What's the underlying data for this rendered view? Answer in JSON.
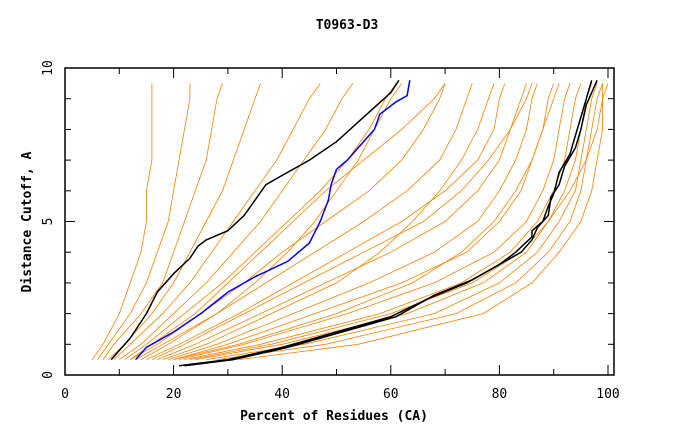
{
  "chart_data": {
    "type": "line",
    "title": "T0963-D3",
    "xlabel": "Percent of Residues (CA)",
    "ylabel": "Distance Cutoff, A",
    "xlim": [
      0,
      100
    ],
    "ylim": [
      0,
      10
    ],
    "xticks": [
      "0",
      "20",
      "40",
      "60",
      "80",
      "100"
    ],
    "yticks": [
      "0",
      "5",
      "10"
    ],
    "grid": false,
    "colors": {
      "models": "#ff8000",
      "highlight_black": "#000000",
      "highlight_blue": "#0000ff"
    },
    "y_levels": [
      0.5,
      1,
      2,
      3,
      4,
      5,
      6,
      7,
      8,
      9,
      9.5
    ],
    "model_curves_x": [
      [
        5,
        7,
        10,
        12,
        14,
        15,
        15,
        16,
        16,
        16,
        16
      ],
      [
        6,
        8,
        12,
        15,
        17,
        19,
        20,
        21,
        22,
        23,
        23
      ],
      [
        7,
        9,
        14,
        18,
        20,
        22,
        24,
        26,
        27,
        28,
        29
      ],
      [
        8,
        11,
        16,
        20,
        23,
        26,
        29,
        31,
        33,
        35,
        36
      ],
      [
        9,
        12,
        18,
        23,
        27,
        31,
        35,
        39,
        42,
        45,
        47
      ],
      [
        10,
        14,
        20,
        26,
        31,
        36,
        40,
        44,
        48,
        51,
        53
      ],
      [
        11,
        15,
        22,
        29,
        35,
        41,
        47,
        52,
        56,
        59,
        61
      ],
      [
        12,
        17,
        25,
        33,
        40,
        48,
        56,
        62,
        66,
        69,
        70
      ],
      [
        13,
        18,
        28,
        37,
        46,
        55,
        63,
        69,
        72,
        74,
        75
      ],
      [
        15,
        21,
        32,
        42,
        52,
        62,
        70,
        76,
        79,
        80,
        81
      ],
      [
        17,
        24,
        36,
        48,
        60,
        70,
        76,
        80,
        82,
        84,
        85
      ],
      [
        19,
        28,
        42,
        56,
        68,
        76,
        80,
        83,
        85,
        86,
        87
      ],
      [
        20,
        30,
        46,
        62,
        74,
        80,
        84,
        86,
        88,
        89,
        90
      ],
      [
        21,
        33,
        52,
        68,
        79,
        85,
        88,
        90,
        91,
        92,
        93
      ],
      [
        22,
        36,
        58,
        73,
        82,
        87,
        90,
        92,
        93,
        94,
        95
      ],
      [
        24,
        40,
        63,
        77,
        85,
        89,
        92,
        94,
        95,
        96,
        97
      ],
      [
        26,
        44,
        68,
        80,
        87,
        91,
        94,
        95,
        96,
        97,
        98
      ],
      [
        28,
        48,
        72,
        83,
        89,
        93,
        95,
        96,
        97,
        98,
        99
      ],
      [
        32,
        54,
        77,
        86,
        91,
        95,
        97,
        98,
        99,
        99,
        100
      ],
      [
        20,
        32,
        50,
        64,
        73,
        79,
        83,
        86,
        88,
        90,
        91
      ],
      [
        18,
        26,
        38,
        50,
        58,
        64,
        69,
        73,
        76,
        78,
        79
      ],
      [
        14,
        19,
        28,
        35,
        41,
        46,
        50,
        54,
        57,
        60,
        62
      ],
      [
        16,
        22,
        33,
        44,
        55,
        66,
        73,
        78,
        82,
        85,
        86
      ],
      [
        23,
        38,
        60,
        75,
        84,
        89,
        93,
        96,
        98,
        99,
        99
      ],
      [
        12,
        16,
        24,
        30,
        36,
        42,
        48,
        55,
        62,
        68,
        70
      ]
    ],
    "series": [
      {
        "color": "#000000",
        "points": [
          [
            8.5,
            0.5
          ],
          [
            12,
            1.2
          ],
          [
            15,
            2
          ],
          [
            17,
            2.7
          ],
          [
            20,
            3.3
          ],
          [
            23,
            3.8
          ],
          [
            24.5,
            4.2
          ],
          [
            26,
            4.4
          ],
          [
            30,
            4.7
          ],
          [
            33,
            5.2
          ],
          [
            37,
            6.2
          ],
          [
            40,
            6.5
          ],
          [
            45,
            7
          ],
          [
            50,
            7.6
          ],
          [
            55,
            8.4
          ],
          [
            60,
            9.2
          ],
          [
            61.5,
            9.6
          ]
        ]
      },
      {
        "color": "#0000ff",
        "points": [
          [
            13,
            0.5
          ],
          [
            15,
            0.9
          ],
          [
            20,
            1.4
          ],
          [
            25,
            2
          ],
          [
            30,
            2.7
          ],
          [
            35,
            3.2
          ],
          [
            41,
            3.7
          ],
          [
            45,
            4.3
          ],
          [
            47,
            5
          ],
          [
            48.5,
            5.7
          ],
          [
            49,
            6.2
          ],
          [
            50,
            6.7
          ],
          [
            52,
            7
          ],
          [
            54,
            7.4
          ],
          [
            57,
            8
          ],
          [
            58,
            8.5
          ],
          [
            61,
            8.9
          ],
          [
            63,
            9.1
          ],
          [
            63.5,
            9.6
          ]
        ]
      },
      {
        "color": "#000000",
        "points": [
          [
            21,
            0.3
          ],
          [
            30,
            0.5
          ],
          [
            40,
            0.9
          ],
          [
            50,
            1.4
          ],
          [
            60,
            1.9
          ],
          [
            67,
            2.5
          ],
          [
            74,
            3.0
          ],
          [
            80,
            3.6
          ],
          [
            83,
            4.0
          ],
          [
            86,
            4.5
          ],
          [
            86,
            4.7
          ],
          [
            88,
            5.0
          ],
          [
            89,
            5.5
          ],
          [
            90,
            5.9
          ],
          [
            91,
            6.6
          ],
          [
            93,
            7.2
          ],
          [
            94,
            7.8
          ],
          [
            95,
            8.4
          ],
          [
            96,
            9.0
          ],
          [
            97,
            9.6
          ]
        ]
      },
      {
        "color": "#000000",
        "points": [
          [
            22,
            0.3
          ],
          [
            31,
            0.5
          ],
          [
            41,
            0.9
          ],
          [
            51,
            1.4
          ],
          [
            61,
            1.9
          ],
          [
            68,
            2.6
          ],
          [
            75,
            3.1
          ],
          [
            81,
            3.7
          ],
          [
            84,
            4.0
          ],
          [
            86,
            4.4
          ],
          [
            87,
            4.8
          ],
          [
            89,
            5.2
          ],
          [
            89.5,
            5.8
          ],
          [
            91,
            6.2
          ],
          [
            92,
            6.8
          ],
          [
            94,
            7.4
          ],
          [
            95,
            8
          ],
          [
            96,
            8.8
          ],
          [
            97,
            9.2
          ],
          [
            98,
            9.6
          ]
        ]
      }
    ]
  }
}
